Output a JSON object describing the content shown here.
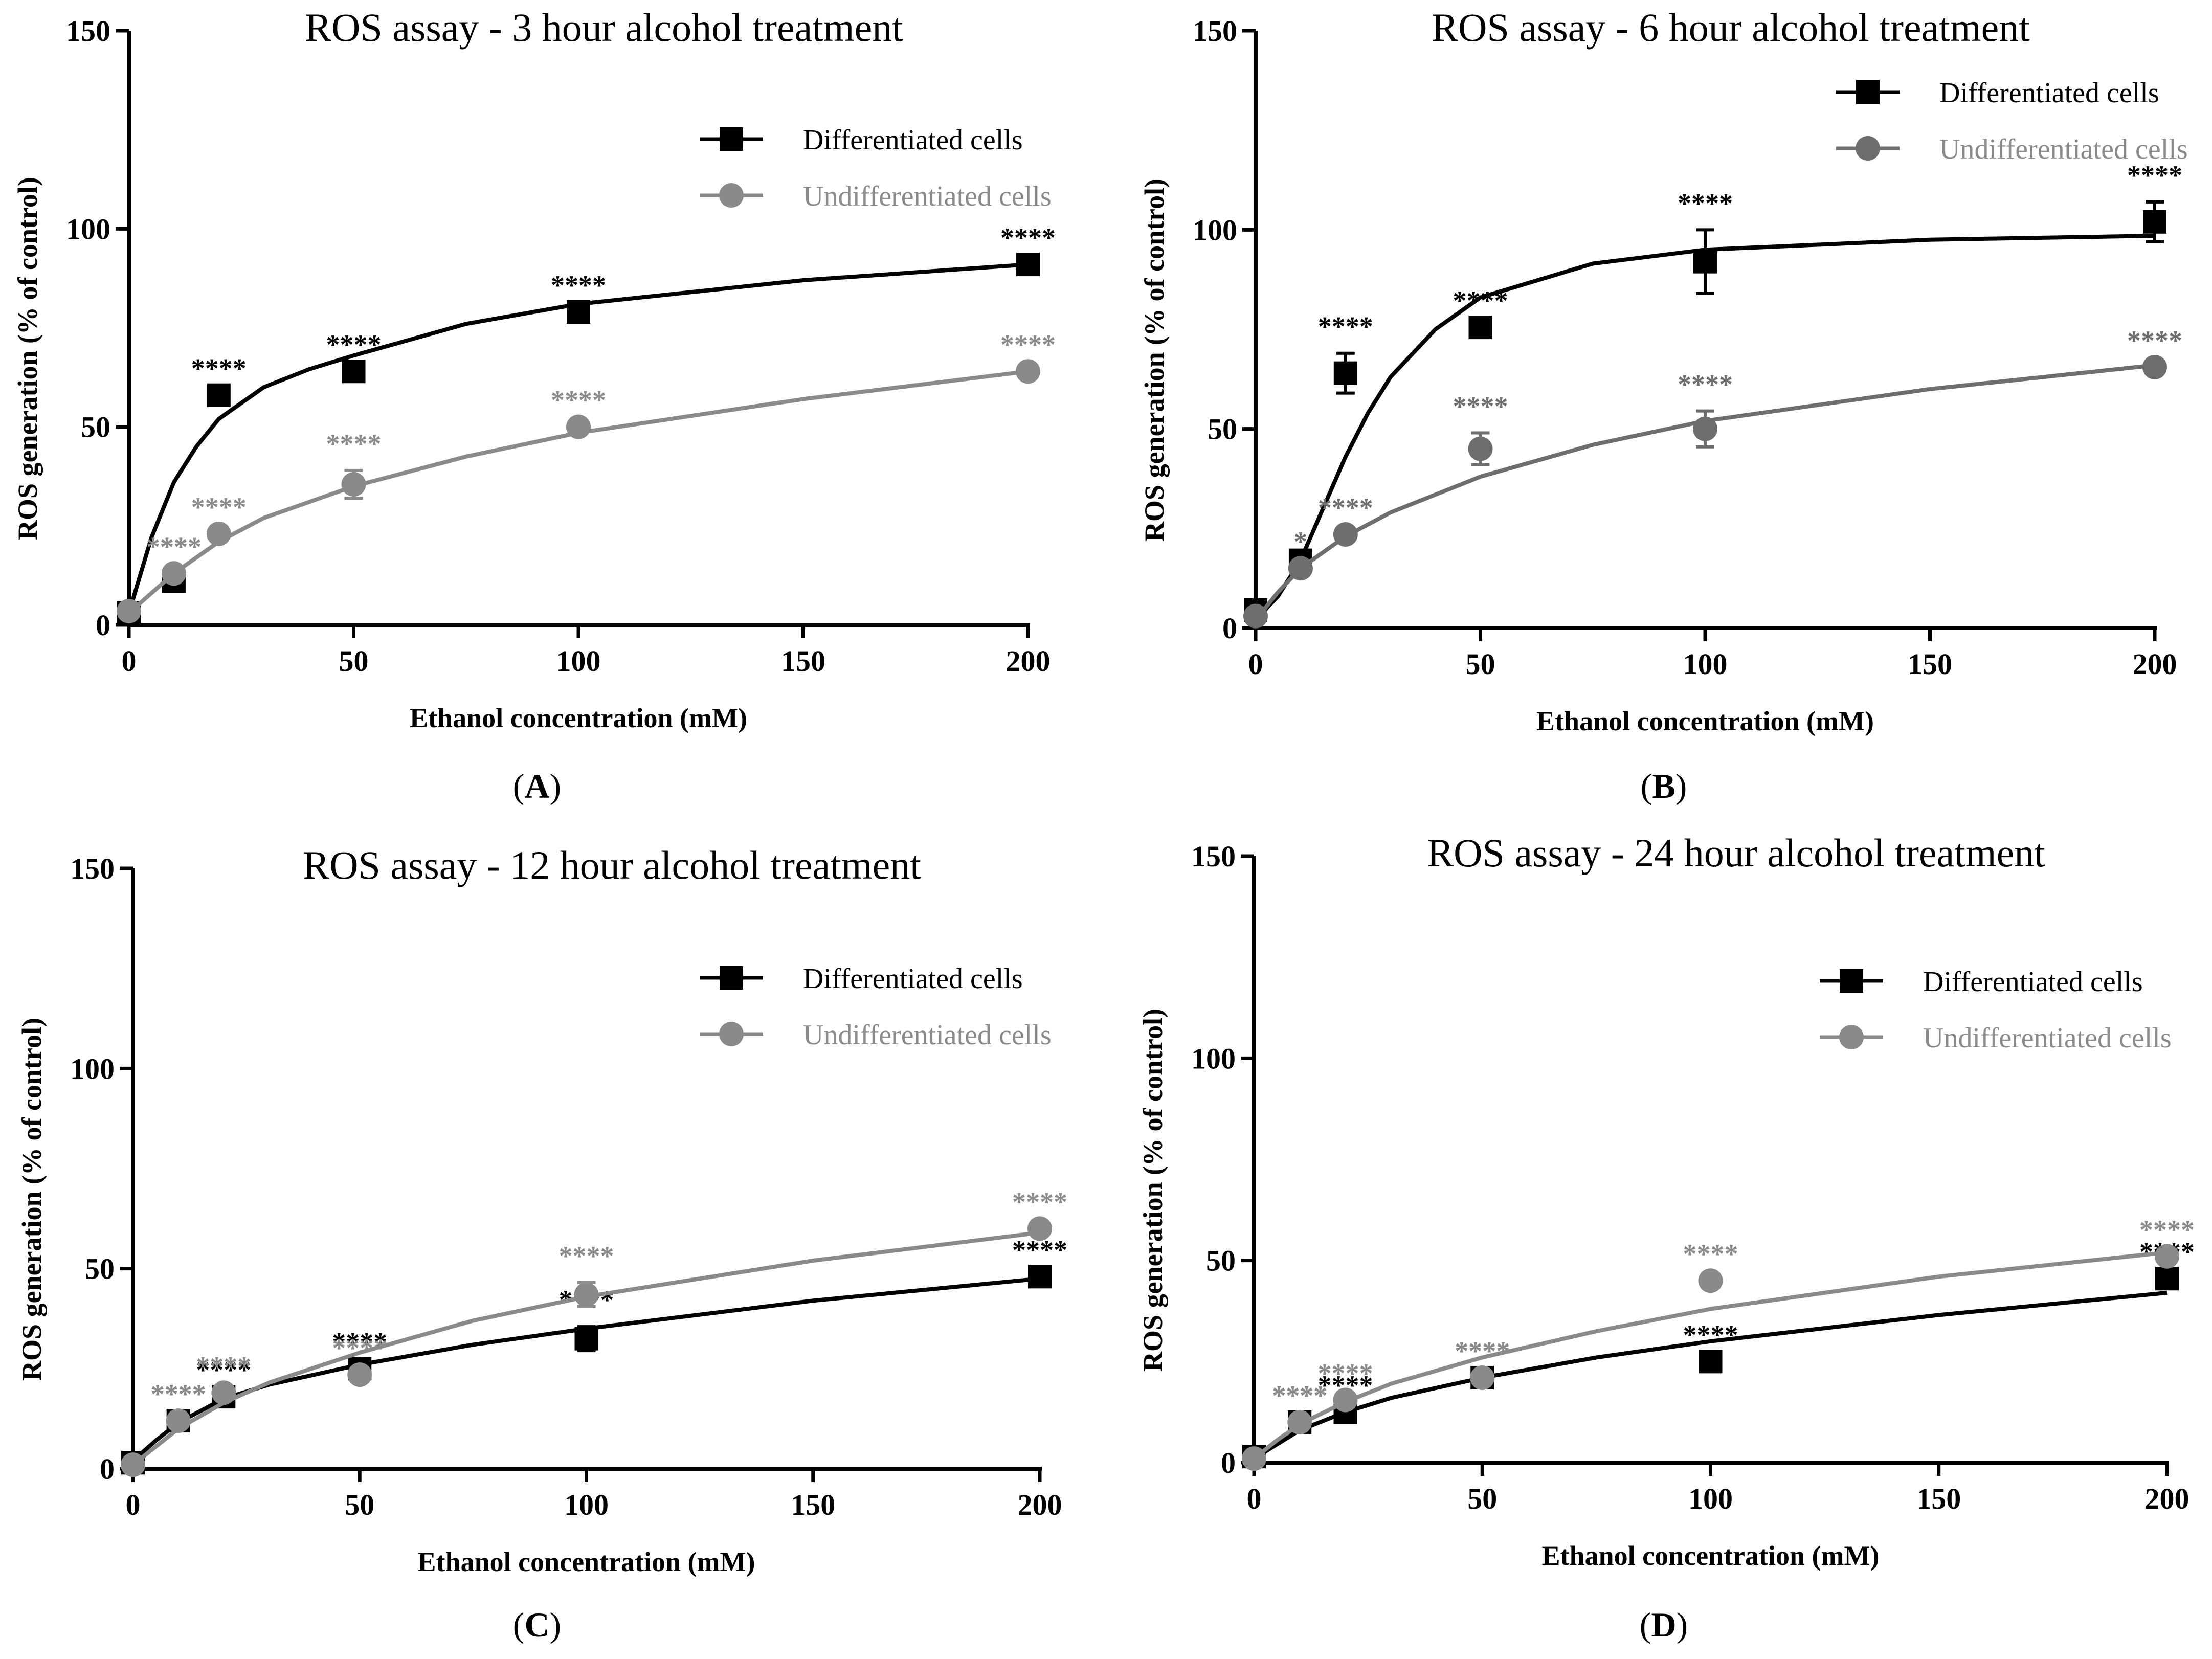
{
  "figure": {
    "panel_tags": [
      "A",
      "B",
      "C",
      "D"
    ]
  },
  "chart_data": [
    {
      "type": "scatter",
      "title": "ROS assay - 3 hour alcohol treatment",
      "xlabel": "Ethanol concentration (mM)",
      "ylabel": "ROS generation (% of control)",
      "xlim": [
        0,
        200
      ],
      "ylim": [
        0,
        150
      ],
      "xticks": [
        0,
        50,
        100,
        150,
        200
      ],
      "yticks": [
        0,
        50,
        100,
        150
      ],
      "legend_position": "top-right",
      "series": [
        {
          "name": "Differentiated cells",
          "color": "#000000",
          "marker": "square",
          "x": [
            0,
            10,
            20,
            50,
            100,
            200
          ],
          "y": [
            3,
            11,
            58,
            64,
            79,
            91
          ],
          "err": [
            0,
            2,
            0,
            0,
            0,
            0
          ],
          "annotations": [
            "",
            "**",
            "****",
            "****",
            "****",
            "****"
          ],
          "fit_curve": [
            [
              0,
              3
            ],
            [
              5,
              22
            ],
            [
              10,
              36
            ],
            [
              15,
              45
            ],
            [
              20,
              52
            ],
            [
              30,
              60
            ],
            [
              40,
              64.5
            ],
            [
              50,
              68
            ],
            [
              75,
              76
            ],
            [
              100,
              81
            ],
            [
              150,
              87
            ],
            [
              200,
              91
            ]
          ]
        },
        {
          "name": "Undifferentiated cells",
          "color": "#8a8a8a",
          "marker": "circle",
          "x": [
            0,
            10,
            20,
            50,
            100,
            200
          ],
          "y": [
            3.5,
            13,
            23,
            35.5,
            50,
            64
          ],
          "err": [
            0,
            0,
            0,
            3.5,
            0,
            0
          ],
          "annotations": [
            "",
            "****",
            "****",
            "****",
            "****",
            "****"
          ],
          "fit_curve": [
            [
              0,
              3
            ],
            [
              5,
              8
            ],
            [
              10,
              13
            ],
            [
              20,
              21
            ],
            [
              30,
              27
            ],
            [
              50,
              35
            ],
            [
              75,
              42.5
            ],
            [
              100,
              48.5
            ],
            [
              150,
              57
            ],
            [
              200,
              64
            ]
          ]
        }
      ]
    },
    {
      "type": "scatter",
      "title": "ROS assay - 6 hour alcohol treatment",
      "xlabel": "Ethanol concentration (mM)",
      "ylabel": "ROS generation (% of control)",
      "xlim": [
        0,
        200
      ],
      "ylim": [
        0,
        150
      ],
      "xticks": [
        0,
        50,
        100,
        150,
        200
      ],
      "yticks": [
        0,
        50,
        100,
        150
      ],
      "legend_position": "top-right",
      "series": [
        {
          "name": "Differentiated cells",
          "color": "#000000",
          "marker": "square",
          "x": [
            0,
            10,
            20,
            50,
            100,
            200
          ],
          "y": [
            4.5,
            17,
            64,
            75.5,
            92,
            102
          ],
          "err": [
            0,
            0,
            5,
            0,
            8,
            5
          ],
          "annotations": [
            "",
            "",
            "****",
            "****",
            "****",
            "****"
          ],
          "fit_curve": [
            [
              0,
              2
            ],
            [
              5,
              8
            ],
            [
              10,
              17
            ],
            [
              15,
              30
            ],
            [
              20,
              43
            ],
            [
              25,
              54
            ],
            [
              30,
              63
            ],
            [
              40,
              75
            ],
            [
              50,
              83
            ],
            [
              75,
              91.5
            ],
            [
              100,
              95
            ],
            [
              150,
              97.5
            ],
            [
              200,
              98.5
            ]
          ]
        },
        {
          "name": "Undifferentiated cells",
          "color": "#6e6e6e",
          "marker": "circle",
          "x": [
            0,
            10,
            20,
            50,
            100,
            200
          ],
          "y": [
            3,
            15,
            23.5,
            45,
            50,
            65.5
          ],
          "err": [
            0,
            0,
            0,
            4,
            4.5,
            0
          ],
          "annotations": [
            "",
            "*",
            "****",
            "****",
            "****",
            "****"
          ],
          "fit_curve": [
            [
              0,
              2
            ],
            [
              5,
              9
            ],
            [
              10,
              15
            ],
            [
              20,
              23
            ],
            [
              30,
              29
            ],
            [
              50,
              38
            ],
            [
              75,
              46
            ],
            [
              100,
              52
            ],
            [
              150,
              60
            ],
            [
              200,
              66
            ]
          ]
        }
      ]
    },
    {
      "type": "scatter",
      "title": "ROS assay - 12 hour alcohol treatment",
      "xlabel": "Ethanol concentration (mM)",
      "ylabel": "ROS generation (% of control)",
      "xlim": [
        0,
        200
      ],
      "ylim": [
        0,
        150
      ],
      "xticks": [
        0,
        50,
        100,
        150,
        200
      ],
      "yticks": [
        0,
        50,
        100,
        150
      ],
      "legend_position": "top-right",
      "series": [
        {
          "name": "Differentiated cells",
          "color": "#000000",
          "marker": "square",
          "x": [
            0,
            10,
            20,
            50,
            100,
            200
          ],
          "y": [
            1.5,
            12,
            18,
            25,
            32.5,
            48
          ],
          "err": [
            0,
            0,
            0,
            0,
            3,
            0
          ],
          "annotations": [
            "",
            "****",
            "****",
            "****",
            "****",
            "****"
          ],
          "fit_curve": [
            [
              0,
              2
            ],
            [
              5,
              7
            ],
            [
              10,
              11.5
            ],
            [
              20,
              17.5
            ],
            [
              30,
              21
            ],
            [
              50,
              26
            ],
            [
              75,
              31
            ],
            [
              100,
              35
            ],
            [
              150,
              42
            ],
            [
              200,
              47.5
            ]
          ]
        },
        {
          "name": "Undifferentiated cells",
          "color": "#8a8a8a",
          "marker": "circle",
          "x": [
            0,
            10,
            20,
            50,
            100,
            200
          ],
          "y": [
            1,
            12,
            19,
            23.5,
            43.5,
            60
          ],
          "err": [
            0,
            0,
            0,
            0,
            3,
            0
          ],
          "annotations": [
            "",
            "****",
            "****",
            "****",
            "****",
            "****"
          ],
          "fit_curve": [
            [
              0,
              1
            ],
            [
              5,
              5.5
            ],
            [
              10,
              10
            ],
            [
              20,
              16.5
            ],
            [
              30,
              21.5
            ],
            [
              50,
              29
            ],
            [
              75,
              37
            ],
            [
              100,
              43
            ],
            [
              150,
              52
            ],
            [
              200,
              59
            ]
          ]
        }
      ]
    },
    {
      "type": "scatter",
      "title": "ROS assay - 24 hour alcohol treatment",
      "xlabel": "Ethanol concentration (mM)",
      "ylabel": "ROS generation (% of control)",
      "xlim": [
        0,
        200
      ],
      "ylim": [
        0,
        150
      ],
      "xticks": [
        0,
        50,
        100,
        150,
        200
      ],
      "yticks": [
        0,
        50,
        100,
        150
      ],
      "legend_position": "top-right",
      "series": [
        {
          "name": "Differentiated cells",
          "color": "#000000",
          "marker": "square",
          "x": [
            0,
            10,
            20,
            50,
            100,
            200
          ],
          "y": [
            1.5,
            10,
            12.5,
            21,
            25,
            45.5
          ],
          "err": [
            0,
            0,
            0,
            0,
            0,
            0
          ],
          "annotations": [
            "",
            "****",
            "****",
            "****",
            "****",
            "****"
          ],
          "fit_curve": [
            [
              0,
              1
            ],
            [
              5,
              4.5
            ],
            [
              10,
              8
            ],
            [
              20,
              12.5
            ],
            [
              30,
              16
            ],
            [
              50,
              21
            ],
            [
              75,
              26
            ],
            [
              100,
              30
            ],
            [
              150,
              36.5
            ],
            [
              200,
              42
            ]
          ]
        },
        {
          "name": "Undifferentiated cells",
          "color": "#8a8a8a",
          "marker": "circle",
          "x": [
            0,
            10,
            20,
            50,
            100,
            200
          ],
          "y": [
            1,
            10,
            15.5,
            21,
            45,
            51
          ],
          "err": [
            0,
            0,
            0,
            0,
            0,
            0
          ],
          "annotations": [
            "",
            "****",
            "****",
            "****",
            "****",
            "****"
          ],
          "fit_curve": [
            [
              0,
              1
            ],
            [
              5,
              5.5
            ],
            [
              10,
              9.5
            ],
            [
              20,
              15
            ],
            [
              30,
              19.5
            ],
            [
              50,
              26
            ],
            [
              75,
              32.5
            ],
            [
              100,
              38
            ],
            [
              150,
              46
            ],
            [
              200,
              52
            ]
          ]
        }
      ]
    }
  ]
}
